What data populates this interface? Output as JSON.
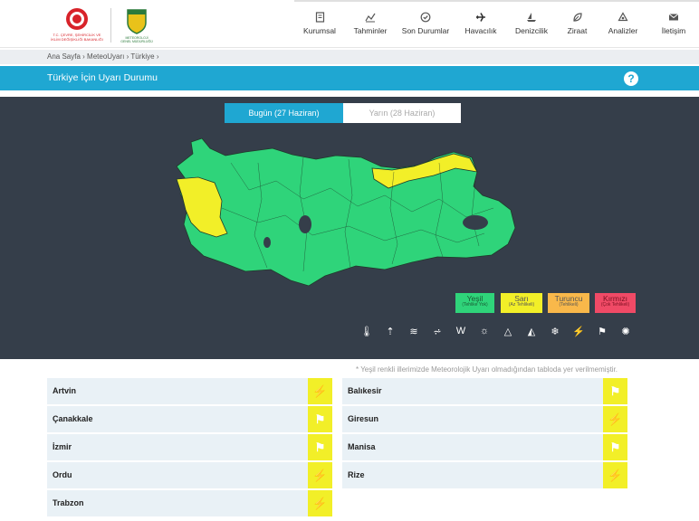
{
  "header": {
    "ministry_logo_text": "T.C. ÇEVRE, ŞEHİRCİLİK VE İKLİM DEĞİŞİKLİĞİ BAKANLIĞI",
    "mgm_logo_text": "METEOROLOJİ GENEL MÜDÜRLÜĞÜ",
    "nav": [
      {
        "label": "Kurumsal",
        "icon": "document-icon"
      },
      {
        "label": "Tahminler",
        "icon": "chart-icon"
      },
      {
        "label": "Son Durumlar",
        "icon": "check-circle-icon"
      },
      {
        "label": "Havacılık",
        "icon": "airplane-icon"
      },
      {
        "label": "Denizcilik",
        "icon": "ship-icon"
      },
      {
        "label": "Ziraat",
        "icon": "leaf-icon"
      },
      {
        "label": "Analizler",
        "icon": "analysis-icon"
      },
      {
        "label": "İletişim",
        "icon": "envelope-icon"
      }
    ]
  },
  "breadcrumb": {
    "home": "Ana Sayfa",
    "section": "MeteoUyarı",
    "current": "Türkiye"
  },
  "title": "Türkiye İçin Uyarı Durumu",
  "tabs": {
    "today": "Bugün (27 Haziran)",
    "tomorrow": "Yarın (28 Haziran)"
  },
  "legend": [
    {
      "label": "Yeşil",
      "sub": "(Tehlike Yok)",
      "color": "#2fd47a"
    },
    {
      "label": "Sarı",
      "sub": "(Az Tehlikeli)",
      "color": "#f2ef28"
    },
    {
      "label": "Turuncu",
      "sub": "(Tehlikeli)",
      "color": "#f9b84a"
    },
    {
      "label": "Kırmızı",
      "sub": "(Çok Tehlikeli)",
      "color": "#f04a66"
    }
  ],
  "hazard_icons": [
    "hot-thermometer-icon",
    "cold-thermometer-icon",
    "fog-icon",
    "dust-icon",
    "wind-icon",
    "sun-icon",
    "avalanche-icon",
    "snowmelt-icon",
    "snow-icon",
    "lightning-icon",
    "flag-wind-icon",
    "storm-icon"
  ],
  "note": "* Yeşil renkli illerimizde Meteorolojik Uyarı olmadığından tabloda yer verilmemiştir.",
  "warnings": [
    {
      "province": "Artvin",
      "hazard": "lightning-icon"
    },
    {
      "province": "Balıkesir",
      "hazard": "flag-wind-icon"
    },
    {
      "province": "Çanakkale",
      "hazard": "flag-wind-icon"
    },
    {
      "province": "Giresun",
      "hazard": "lightning-icon"
    },
    {
      "province": "İzmir",
      "hazard": "flag-wind-icon"
    },
    {
      "province": "Manisa",
      "hazard": "flag-wind-icon"
    },
    {
      "province": "Ordu",
      "hazard": "lightning-icon"
    },
    {
      "province": "Rize",
      "hazard": "lightning-icon"
    },
    {
      "province": "Trabzon",
      "hazard": "lightning-icon"
    }
  ],
  "colors": {
    "accent": "#1fa7d2",
    "map_bg": "#353e4a",
    "green": "#2fd47a",
    "yellow": "#f2ef28"
  }
}
